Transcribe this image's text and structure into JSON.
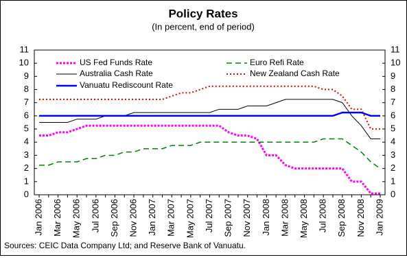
{
  "chart_data": {
    "type": "line",
    "title": "Policy Rates",
    "subtitle": "(In percent, end of period)",
    "source": "Sources: CEIC Data Company Ltd; and Reserve Bank of Vanuatu.",
    "categories": [
      "Jan 2006",
      null,
      "Mar 2006",
      null,
      "May 2006",
      null,
      "Jul 2006",
      null,
      "Sep 2006",
      null,
      "Nov 2006",
      null,
      "Jan 2007",
      null,
      "Mar 2007",
      null,
      "May 2007",
      null,
      "Jul 2007",
      null,
      "Sep 2007",
      null,
      "Nov 2007",
      null,
      "Jan 2008",
      null,
      "Mar 2008",
      null,
      "May 2008",
      null,
      "Jul 2008",
      null,
      "Sep 2008",
      null,
      "Nov 2008",
      null,
      "Jan 2009"
    ],
    "series": [
      {
        "name": "US Fed Funds Rate",
        "color": "#ff00ff",
        "style": "dotted-thick",
        "values": [
          4.5,
          4.5,
          4.75,
          4.75,
          5.0,
          5.25,
          5.25,
          5.25,
          5.25,
          5.25,
          5.25,
          5.25,
          5.25,
          5.25,
          5.25,
          5.25,
          5.25,
          5.25,
          5.25,
          5.25,
          4.75,
          4.5,
          4.5,
          4.25,
          3.0,
          3.0,
          2.25,
          2.0,
          2.0,
          2.0,
          2.0,
          2.0,
          2.0,
          1.0,
          1.0,
          0.1,
          0.1
        ]
      },
      {
        "name": "Euro Refi Rate",
        "color": "#008000",
        "style": "dashed",
        "values": [
          2.25,
          2.25,
          2.5,
          2.5,
          2.5,
          2.75,
          2.75,
          3.0,
          3.0,
          3.25,
          3.25,
          3.5,
          3.5,
          3.5,
          3.75,
          3.75,
          3.75,
          4.0,
          4.0,
          4.0,
          4.0,
          4.0,
          4.0,
          4.0,
          4.0,
          4.0,
          4.0,
          4.0,
          4.0,
          4.0,
          4.25,
          4.25,
          4.25,
          3.75,
          3.25,
          2.5,
          2.0
        ]
      },
      {
        "name": "Australia Cash Rate",
        "color": "#000000",
        "style": "solid-thin",
        "values": [
          5.5,
          5.5,
          5.5,
          5.5,
          5.75,
          5.75,
          5.75,
          6.0,
          6.0,
          6.0,
          6.25,
          6.25,
          6.25,
          6.25,
          6.25,
          6.25,
          6.25,
          6.25,
          6.25,
          6.5,
          6.5,
          6.5,
          6.75,
          6.75,
          6.75,
          7.0,
          7.25,
          7.25,
          7.25,
          7.25,
          7.25,
          7.25,
          7.0,
          6.0,
          5.25,
          4.25,
          4.25
        ]
      },
      {
        "name": "New Zealand Cash Rate",
        "color": "#e00000",
        "style": "dotted",
        "values": [
          7.25,
          7.25,
          7.25,
          7.25,
          7.25,
          7.25,
          7.25,
          7.25,
          7.25,
          7.25,
          7.25,
          7.25,
          7.25,
          7.25,
          7.5,
          7.75,
          7.75,
          8.0,
          8.25,
          8.25,
          8.25,
          8.25,
          8.25,
          8.25,
          8.25,
          8.25,
          8.25,
          8.25,
          8.25,
          8.25,
          8.0,
          8.0,
          7.5,
          6.5,
          6.5,
          5.0,
          5.0
        ]
      },
      {
        "name": "Vanuatu Rediscount Rate",
        "color": "#0000ff",
        "style": "solid-thick",
        "values": [
          6.0,
          6.0,
          6.0,
          6.0,
          6.0,
          6.0,
          6.0,
          6.0,
          6.0,
          6.0,
          6.0,
          6.0,
          6.0,
          6.0,
          6.0,
          6.0,
          6.0,
          6.0,
          6.0,
          6.0,
          6.0,
          6.0,
          6.0,
          6.0,
          6.0,
          6.0,
          6.0,
          6.0,
          6.0,
          6.0,
          6.0,
          6.0,
          6.25,
          6.25,
          6.25,
          6.0,
          6.0
        ]
      }
    ],
    "ylim": [
      0,
      11
    ],
    "yticks": [
      0,
      1,
      2,
      3,
      4,
      5,
      6,
      7,
      8,
      9,
      10,
      11
    ],
    "y2lim": [
      0,
      11
    ],
    "y2ticks": [
      0,
      1,
      2,
      3,
      4,
      5,
      6,
      7,
      8,
      9,
      10,
      11
    ],
    "grid": false
  }
}
